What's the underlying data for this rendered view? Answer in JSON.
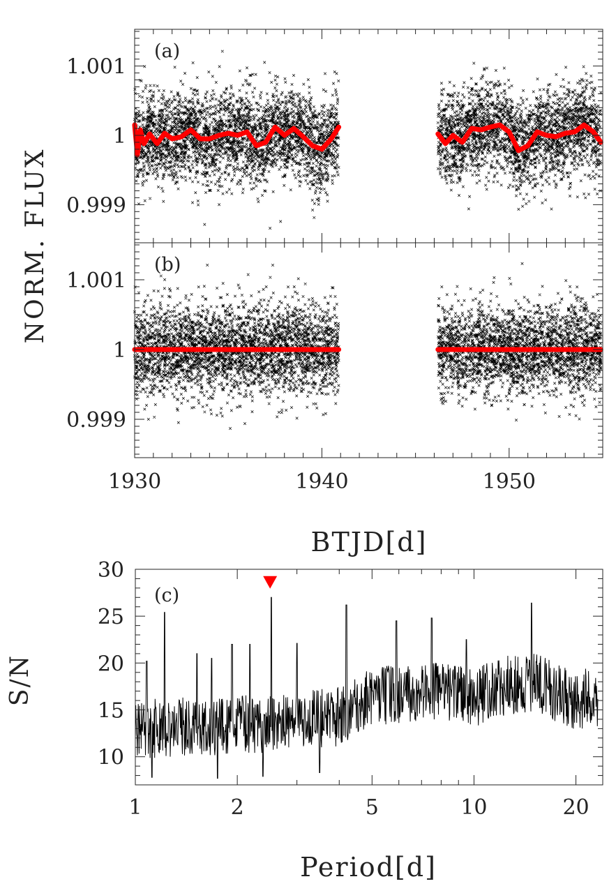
{
  "chart_data": [
    {
      "id": "a",
      "type": "scatter",
      "panel_label": "(a)",
      "ylabel": "NORM. FLUX",
      "xlim": [
        1930,
        1955
      ],
      "ylim": [
        0.99845,
        1.00153
      ],
      "yticks": [
        0.999,
        1,
        1.001
      ],
      "ytick_labels": [
        "0.999",
        "1",
        "1.001"
      ],
      "x_segments": [
        [
          1930.0,
          1940.9
        ],
        [
          1946.2,
          1954.9
        ]
      ],
      "point_scatter_sigma": 0.00032,
      "trend_color": "#ff0000",
      "trend": [
        [
          1930.0,
          1.00015
        ],
        [
          1930.15,
          0.99972
        ],
        [
          1930.3,
          1.00008
        ],
        [
          1930.5,
          0.99988
        ],
        [
          1930.8,
          1.00002
        ],
        [
          1931.2,
          0.99988
        ],
        [
          1931.6,
          1.00003
        ],
        [
          1932.0,
          0.99995
        ],
        [
          1932.5,
          0.99998
        ],
        [
          1933.0,
          1.00008
        ],
        [
          1933.5,
          0.99995
        ],
        [
          1934.0,
          0.99995
        ],
        [
          1934.5,
          1.0
        ],
        [
          1935.0,
          1.00003
        ],
        [
          1935.5,
          1.0
        ],
        [
          1936.0,
          1.00005
        ],
        [
          1936.5,
          0.99985
        ],
        [
          1937.0,
          0.9999
        ],
        [
          1937.5,
          1.00012
        ],
        [
          1938.0,
          1.0
        ],
        [
          1938.5,
          1.0001
        ],
        [
          1939.0,
          0.99998
        ],
        [
          1939.5,
          0.99985
        ],
        [
          1940.0,
          0.9998
        ],
        [
          1940.5,
          0.99995
        ],
        [
          1940.9,
          1.00012
        ],
        [
          1946.2,
          1.00002
        ],
        [
          1946.6,
          0.99988
        ],
        [
          1947.0,
          1.0
        ],
        [
          1947.5,
          0.9999
        ],
        [
          1948.0,
          1.0001
        ],
        [
          1948.5,
          1.00008
        ],
        [
          1949.0,
          1.00012
        ],
        [
          1949.5,
          1.00015
        ],
        [
          1950.0,
          1.00005
        ],
        [
          1950.5,
          0.99978
        ],
        [
          1951.0,
          0.99985
        ],
        [
          1951.5,
          1.00005
        ],
        [
          1952.0,
          1.0
        ],
        [
          1952.5,
          0.99998
        ],
        [
          1953.0,
          1.00003
        ],
        [
          1953.5,
          1.00005
        ],
        [
          1954.0,
          1.00015
        ],
        [
          1954.5,
          1.00005
        ],
        [
          1954.9,
          0.9999
        ]
      ]
    },
    {
      "id": "b",
      "type": "scatter",
      "panel_label": "(b)",
      "xlabel": "BTJD[d]",
      "xlim": [
        1930,
        1955
      ],
      "ylim": [
        0.99845,
        1.00153
      ],
      "xticks": [
        1930,
        1940,
        1950
      ],
      "xtick_labels": [
        "1930",
        "1940",
        "1950"
      ],
      "yticks": [
        0.999,
        1,
        1.001
      ],
      "ytick_labels": [
        "0.999",
        "1",
        "1.001"
      ],
      "x_segments": [
        [
          1930.0,
          1940.9
        ],
        [
          1946.2,
          1954.9
        ]
      ],
      "point_scatter_sigma": 0.00032,
      "trend_color": "#ff0000",
      "trend": [
        [
          1930.0,
          1.0
        ],
        [
          1940.9,
          1.0
        ],
        [
          1946.2,
          1.0
        ],
        [
          1954.9,
          1.0
        ]
      ]
    },
    {
      "id": "c",
      "type": "line",
      "panel_label": "(c)",
      "xlabel": "Period[d]",
      "ylabel": "S/N",
      "xscale": "log",
      "xlim": [
        1,
        24
      ],
      "ylim": [
        7,
        30
      ],
      "xticks": [
        1,
        2,
        5,
        10,
        20
      ],
      "xtick_labels": [
        "1",
        "2",
        "5",
        "10",
        "20"
      ],
      "yticks": [
        10,
        15,
        20,
        25,
        30
      ],
      "ytick_labels": [
        "10",
        "15",
        "20",
        "25",
        "30"
      ],
      "marker": {
        "x": 2.5,
        "y": 28.6,
        "shape": "triangle-down",
        "color": "#ff0000"
      },
      "peaks": [
        [
          1.08,
          20.2
        ],
        [
          1.22,
          25.4
        ],
        [
          1.52,
          21.0
        ],
        [
          1.68,
          20.5
        ],
        [
          1.93,
          22.0
        ],
        [
          2.18,
          22.0
        ],
        [
          2.52,
          27.0
        ],
        [
          3.0,
          22.1
        ],
        [
          4.2,
          26.2
        ],
        [
          5.9,
          24.5
        ],
        [
          7.5,
          24.8
        ],
        [
          9.5,
          22.5
        ],
        [
          14.8,
          26.4
        ]
      ],
      "dips": [
        [
          1.12,
          7.8
        ],
        [
          1.75,
          7.7
        ],
        [
          2.38,
          7.9
        ],
        [
          3.5,
          8.3
        ]
      ],
      "baseline": [
        [
          1.0,
          13.0
        ],
        [
          1.5,
          13.2
        ],
        [
          2.0,
          13.3
        ],
        [
          3.0,
          13.8
        ],
        [
          4.0,
          14.3
        ],
        [
          5.0,
          16.5
        ],
        [
          7.0,
          17.0
        ],
        [
          9.0,
          16.8
        ],
        [
          10.0,
          16.2
        ],
        [
          12.0,
          17.5
        ],
        [
          15.0,
          18.0
        ],
        [
          17.0,
          17.0
        ],
        [
          20.0,
          15.8
        ],
        [
          22.0,
          16.5
        ],
        [
          24.0,
          16.3
        ]
      ],
      "noise_amplitude": 3.2
    }
  ]
}
